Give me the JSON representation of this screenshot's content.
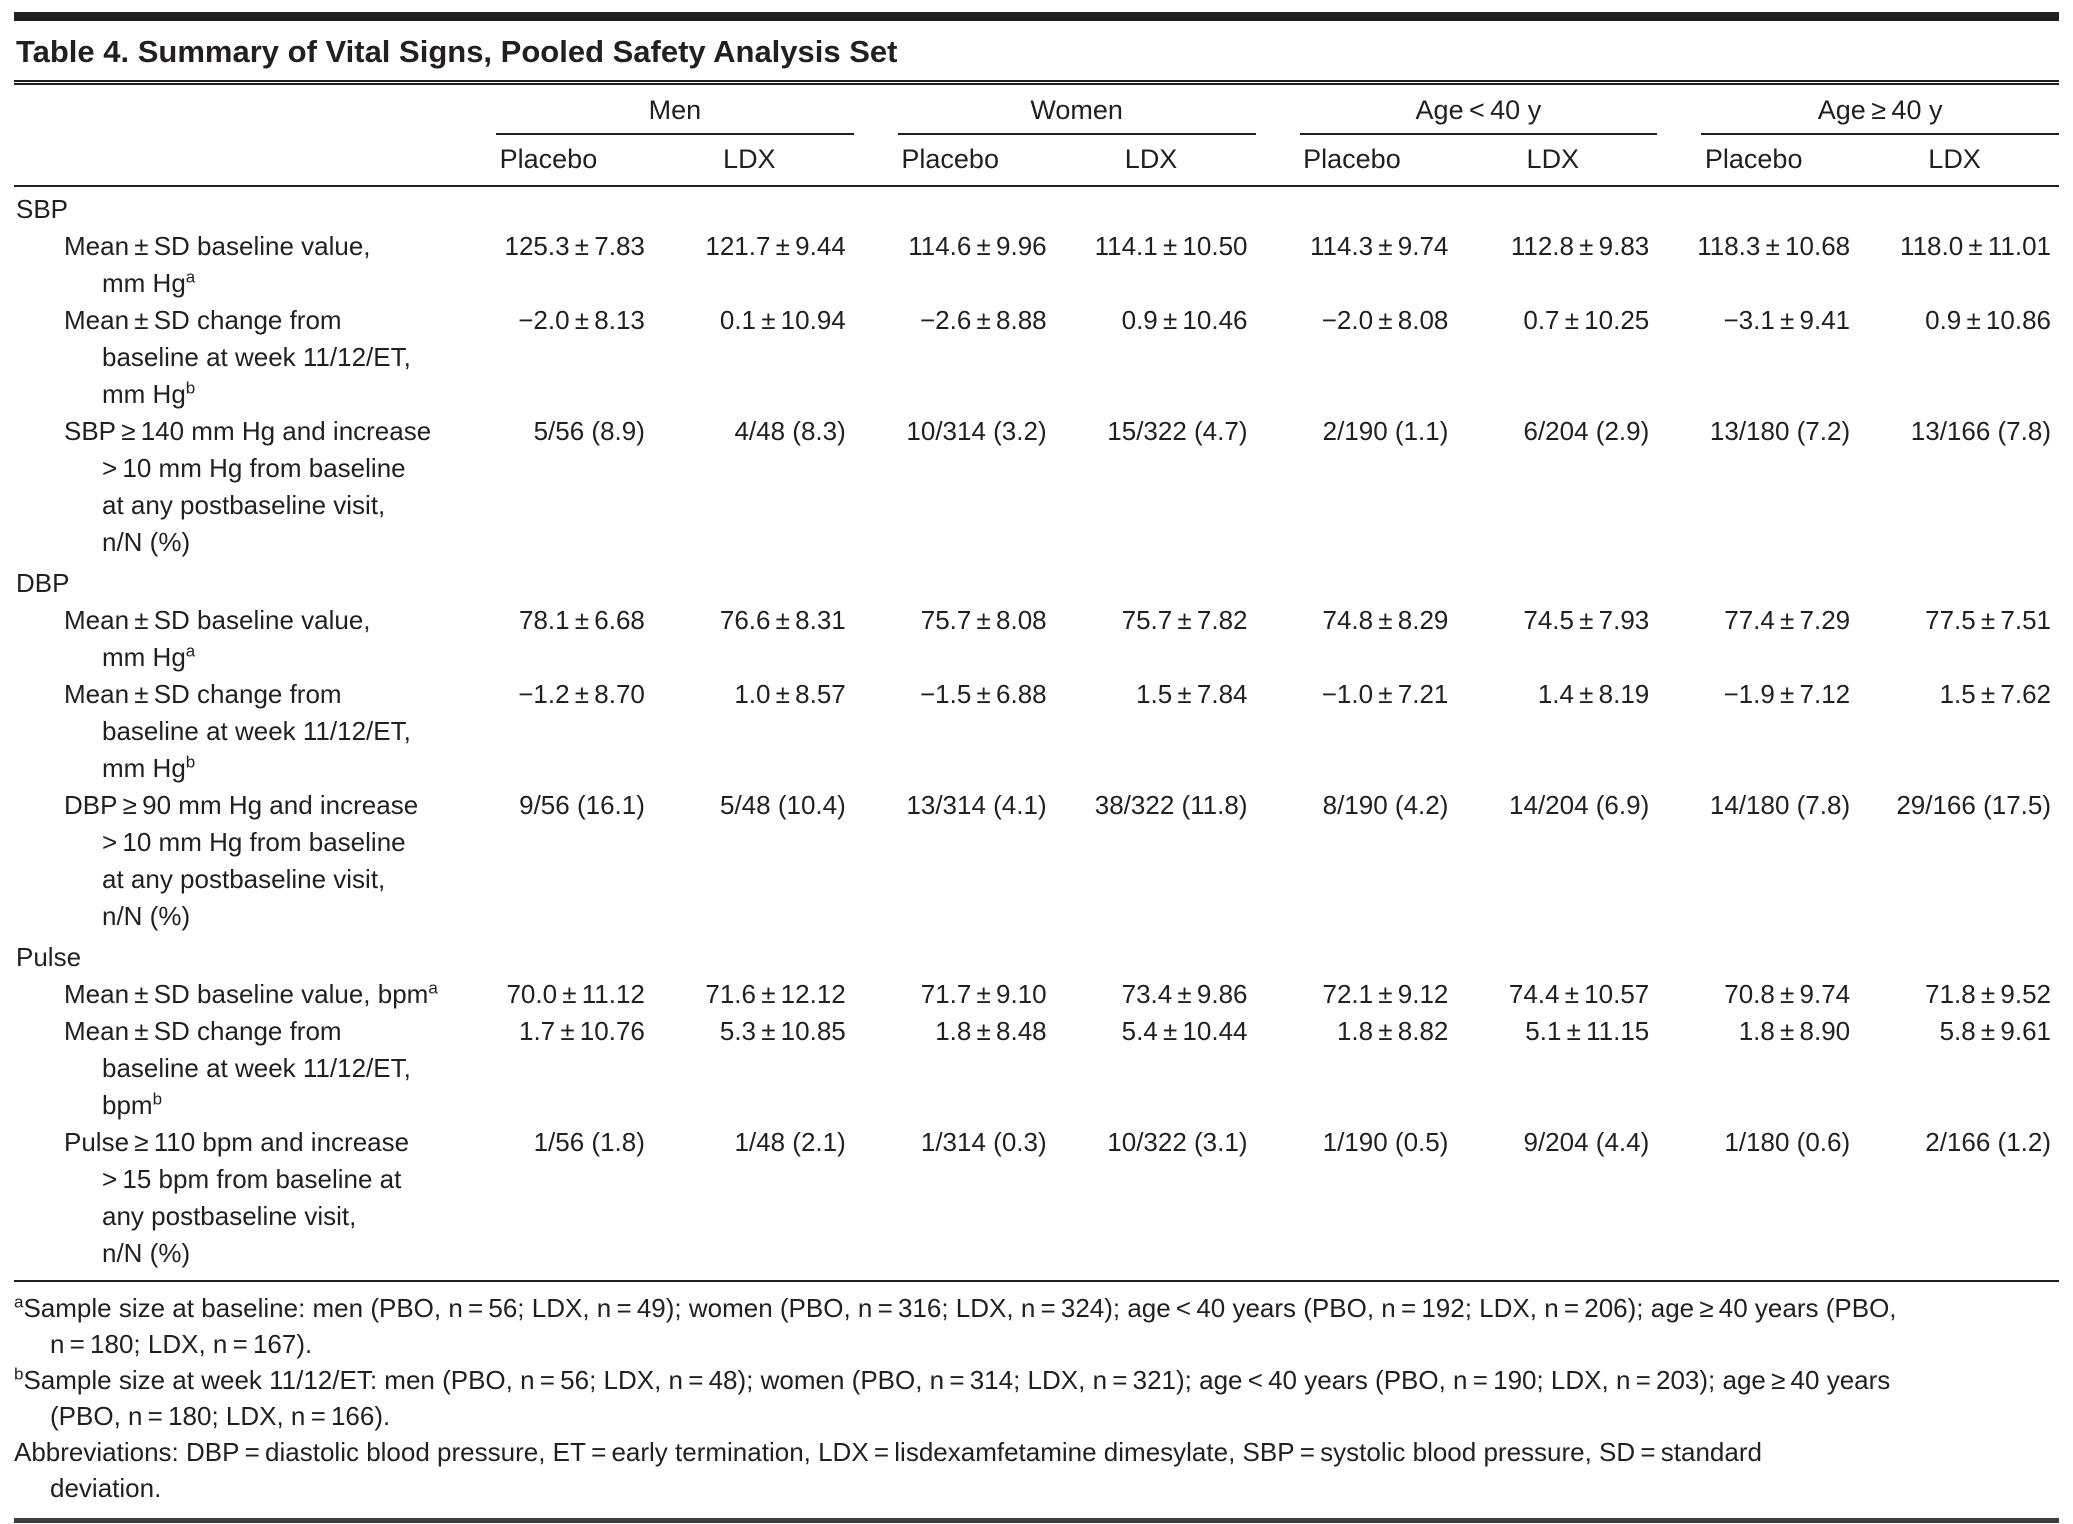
{
  "title": "Table 4. Summary of Vital Signs, Pooled Safety Analysis Set",
  "colors": {
    "text": "#231f20",
    "rule": "#231f20",
    "bottom_rule": "#3d3d3d",
    "background": "#ffffff"
  },
  "table": {
    "column_groups": [
      {
        "label": "Men"
      },
      {
        "label": "Women"
      },
      {
        "label": "Age < 40 y"
      },
      {
        "label": "Age ≥ 40 y"
      }
    ],
    "sub_columns": [
      "Placebo",
      "LDX"
    ],
    "sections": [
      {
        "name": "SBP",
        "rows": [
          {
            "label": "Mean ± SD baseline value,\nmm Hg",
            "sup": "a",
            "values": [
              "125.3 ± 7.83",
              "121.7 ± 9.44",
              "114.6 ± 9.96",
              "114.1 ± 10.50",
              "114.3 ± 9.74",
              "112.8 ± 9.83",
              "118.3 ± 10.68",
              "118.0 ± 11.01"
            ]
          },
          {
            "label": "Mean ± SD change from\nbaseline at week 11/12/ET,\nmm Hg",
            "sup": "b",
            "values": [
              "−2.0 ± 8.13",
              "0.1 ± 10.94",
              "−2.6 ± 8.88",
              "0.9 ± 10.46",
              "−2.0 ± 8.08",
              "0.7 ± 10.25",
              "−3.1 ± 9.41",
              "0.9 ± 10.86"
            ]
          },
          {
            "label": "SBP ≥ 140 mm Hg and increase\n> 10 mm Hg from baseline\nat any postbaseline visit,\nn/N (%)",
            "sup": "",
            "values": [
              "5/56 (8.9)",
              "4/48 (8.3)",
              "10/314 (3.2)",
              "15/322 (4.7)",
              "2/190 (1.1)",
              "6/204 (2.9)",
              "13/180 (7.2)",
              "13/166 (7.8)"
            ]
          }
        ]
      },
      {
        "name": "DBP",
        "rows": [
          {
            "label": "Mean ± SD baseline value,\nmm Hg",
            "sup": "a",
            "values": [
              "78.1 ± 6.68",
              "76.6 ± 8.31",
              "75.7 ± 8.08",
              "75.7 ± 7.82",
              "74.8 ± 8.29",
              "74.5 ± 7.93",
              "77.4 ± 7.29",
              "77.5 ± 7.51"
            ]
          },
          {
            "label": "Mean ± SD change from\nbaseline at week 11/12/ET,\nmm Hg",
            "sup": "b",
            "values": [
              "−1.2 ± 8.70",
              "1.0 ± 8.57",
              "−1.5 ± 6.88",
              "1.5 ± 7.84",
              "−1.0 ± 7.21",
              "1.4 ± 8.19",
              "−1.9 ± 7.12",
              "1.5 ± 7.62"
            ]
          },
          {
            "label": "DBP ≥ 90 mm Hg and increase\n> 10 mm Hg from baseline\nat any postbaseline visit,\nn/N (%)",
            "sup": "",
            "values": [
              "9/56 (16.1)",
              "5/48 (10.4)",
              "13/314 (4.1)",
              "38/322 (11.8)",
              "8/190 (4.2)",
              "14/204 (6.9)",
              "14/180 (7.8)",
              "29/166 (17.5)"
            ]
          }
        ]
      },
      {
        "name": "Pulse",
        "rows": [
          {
            "label": "Mean ± SD baseline value, bpm",
            "sup": "a",
            "values": [
              "70.0 ± 11.12",
              "71.6 ± 12.12",
              "71.7 ± 9.10",
              "73.4 ± 9.86",
              "72.1 ± 9.12",
              "74.4 ± 10.57",
              "70.8 ± 9.74",
              "71.8 ± 9.52"
            ]
          },
          {
            "label": "Mean ± SD change from\nbaseline at week 11/12/ET,\nbpm",
            "sup": "b",
            "values": [
              "1.7 ± 10.76",
              "5.3 ± 10.85",
              "1.8 ± 8.48",
              "5.4 ± 10.44",
              "1.8 ± 8.82",
              "5.1 ± 11.15",
              "1.8 ± 8.90",
              "5.8 ± 9.61"
            ]
          },
          {
            "label": "Pulse ≥ 110 bpm and increase\n> 15 bpm from baseline at\nany postbaseline visit,\nn/N (%)",
            "sup": "",
            "values": [
              "1/56 (1.8)",
              "1/48 (2.1)",
              "1/314 (0.3)",
              "10/322 (3.1)",
              "1/190 (0.5)",
              "9/204 (4.4)",
              "1/180 (0.6)",
              "2/166 (1.2)"
            ]
          }
        ]
      }
    ]
  },
  "footnotes": [
    {
      "sup": "a",
      "text": "Sample size at baseline: men (PBO, n = 56; LDX, n = 49); women (PBO, n = 316; LDX, n = 324); age < 40 years (PBO, n = 192; LDX, n = 206); age ≥ 40 years (PBO,\nn = 180; LDX, n = 167)."
    },
    {
      "sup": "b",
      "text": "Sample size at week 11/12/ET: men (PBO, n = 56; LDX, n = 48); women (PBO, n = 314; LDX, n = 321); age < 40 years (PBO, n = 190; LDX, n = 203); age ≥ 40 years\n(PBO, n = 180; LDX, n = 166)."
    },
    {
      "sup": "",
      "text": "Abbreviations: DBP = diastolic blood pressure, ET = early termination, LDX = lisdexamfetamine dimesylate, SBP = systolic blood pressure, SD = standard\ndeviation."
    }
  ]
}
